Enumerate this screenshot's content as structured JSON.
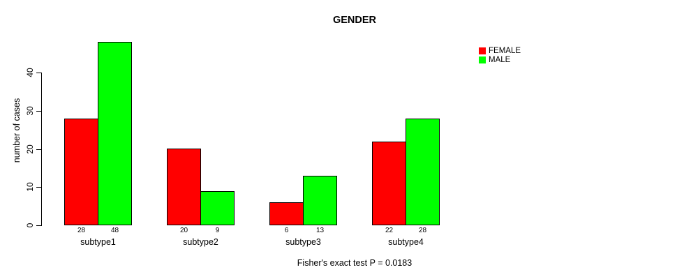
{
  "chart_data": {
    "type": "bar",
    "title": "GENDER",
    "xlabel": "",
    "ylabel": "number of cases",
    "categories": [
      "subtype1",
      "subtype2",
      "subtype3",
      "subtype4"
    ],
    "series": [
      {
        "name": "FEMALE",
        "color": "#ff0000",
        "values": [
          28,
          20,
          6,
          22
        ]
      },
      {
        "name": "MALE",
        "color": "#00ff00",
        "values": [
          48,
          9,
          13,
          28
        ]
      }
    ],
    "yticks": [
      0,
      10,
      20,
      30,
      40
    ],
    "ylim": [
      0,
      48
    ],
    "grid": false,
    "legend_position": "top-right",
    "bar_value_labels_shown": true,
    "annotation": "Fisher's exact test P = 0.0183"
  }
}
